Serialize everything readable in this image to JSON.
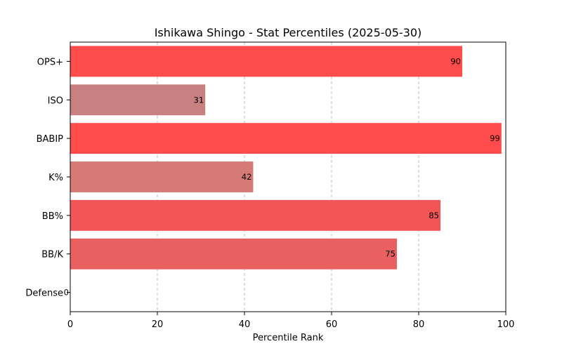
{
  "chart_data": {
    "type": "bar",
    "orientation": "horizontal",
    "title": "Ishikawa Shingo - Stat Percentiles (2025-05-30)",
    "xlabel": "Percentile Rank",
    "ylabel": "",
    "xlim": [
      0,
      100
    ],
    "xticks": [
      "0",
      "20",
      "40",
      "60",
      "80",
      "100"
    ],
    "grid": "vertical dashed",
    "categories": [
      "OPS+",
      "ISO",
      "BABIP",
      "K%",
      "BB%",
      "BB/K",
      "Defense"
    ],
    "values": [
      90,
      31,
      99,
      42,
      85,
      75,
      0
    ],
    "data_labels": [
      "90",
      "31",
      "99",
      "42",
      "85",
      "75",
      "0"
    ],
    "colors": [
      "#ff4d4d",
      "#c88080",
      "#ff4b4b",
      "#d57a77",
      "#f25555",
      "#e86060",
      "#a0a0a0"
    ]
  }
}
